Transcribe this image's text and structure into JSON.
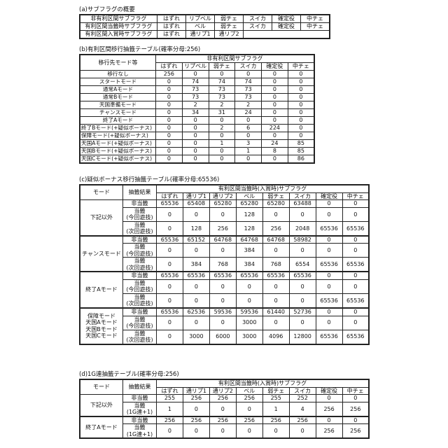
{
  "table_a": {
    "title": "(a)サブフラグの概要",
    "rows": [
      [
        "非有利区間サブフラグ",
        "はずれ",
        "リプベル",
        "弱チェ",
        "スイカ",
        "確定役",
        "中チェ"
      ],
      [
        "有利区間当籤時サブフラグ",
        "はずれ",
        "ベル",
        "弱チェ",
        "スイカ",
        "確定役",
        "中チェ"
      ],
      [
        "有利区間入賞時サブフラグ",
        "はずれ",
        "通リプ1",
        "通リプ2"
      ]
    ]
  },
  "table_b": {
    "title": "(b)有利区間移行抽籤テーブル(確率分母:256)",
    "corner": "移行先モード等",
    "group_header": "非有利区間サブフラグ",
    "columns": [
      "はずれ",
      "リプベル",
      "弱チェ",
      "スイカ",
      "確定役",
      "中チェ"
    ],
    "rows": [
      {
        "label": "移行なし",
        "values": [
          256,
          0,
          0,
          0,
          0,
          0
        ]
      },
      {
        "label": "スタートモード",
        "values": [
          0,
          74,
          74,
          74,
          0,
          0
        ]
      },
      {
        "label": "通常Aモード",
        "values": [
          0,
          73,
          73,
          73,
          0,
          0
        ]
      },
      {
        "label": "通常Bモード",
        "values": [
          0,
          73,
          73,
          73,
          0,
          0
        ]
      },
      {
        "label": "天国準備モード",
        "values": [
          0,
          2,
          2,
          2,
          0,
          0
        ]
      },
      {
        "label": "チャンスモード",
        "values": [
          0,
          34,
          31,
          24,
          0,
          0
        ]
      },
      {
        "label": "終了Aモード",
        "values": [
          0,
          0,
          0,
          0,
          0,
          0
        ]
      },
      {
        "label": "終了Bモード(+疑似ボーナス)",
        "values": [
          0,
          0,
          2,
          6,
          224,
          0
        ]
      },
      {
        "label": "保障モード(+疑似ボーナス)",
        "values": [
          0,
          0,
          0,
          0,
          0,
          0
        ]
      },
      {
        "label": "天国Aモード(+疑似ボーナス)",
        "values": [
          0,
          0,
          1,
          3,
          24,
          85
        ]
      },
      {
        "label": "天国Bモード(+疑似ボーナス)",
        "values": [
          0,
          0,
          0,
          1,
          8,
          85
        ]
      },
      {
        "label": "天国Cモード(+疑似ボーナス)",
        "values": [
          0,
          0,
          0,
          0,
          0,
          86
        ]
      }
    ]
  },
  "table_c": {
    "title": "(c)疑似ボーナス移行抽籤テーブル(確率分母:65536)",
    "mode_header": "モード",
    "result_header": "抽籤結果",
    "group_header": "有利区間当籤時(入賞時)サブフラグ",
    "columns": [
      "はずれ",
      "通リプ1",
      "通リプ2",
      "ベル",
      "弱チェ",
      "スイカ",
      "確定役",
      "中チェ"
    ],
    "groups": [
      {
        "mode": "下記以外",
        "rows": [
          {
            "result": "非当籤",
            "values": [
              65536,
              65408,
              65280,
              65280,
              65280,
              63488,
              0,
              0
            ]
          },
          {
            "result": "当籤\n(今回遊技)",
            "values": [
              0,
              0,
              0,
              128,
              0,
              0,
              0,
              0
            ]
          },
          {
            "result": "当籤\n(次回遊技)",
            "values": [
              0,
              128,
              256,
              128,
              256,
              2048,
              65536,
              65536
            ]
          }
        ]
      },
      {
        "mode": "チャンスモード",
        "rows": [
          {
            "result": "非当籤",
            "values": [
              65536,
              65152,
              64768,
              64768,
              64768,
              58982,
              0,
              0
            ]
          },
          {
            "result": "当籤\n(今回遊技)",
            "values": [
              0,
              0,
              0,
              384,
              0,
              0,
              0,
              0
            ]
          },
          {
            "result": "当籤\n(次回遊技)",
            "values": [
              0,
              384,
              768,
              384,
              768,
              6554,
              65536,
              65536
            ]
          }
        ]
      },
      {
        "mode": "終了Aモード",
        "rows": [
          {
            "result": "非当籤",
            "values": [
              65536,
              65536,
              65536,
              65536,
              65536,
              65536,
              0,
              0
            ]
          },
          {
            "result": "当籤\n(今回遊技)",
            "values": [
              0,
              0,
              0,
              0,
              0,
              0,
              0,
              0
            ]
          },
          {
            "result": "当籤\n(次回遊技)",
            "values": [
              0,
              0,
              0,
              0,
              0,
              0,
              65536,
              65536
            ]
          }
        ]
      },
      {
        "mode": "保障モード\n天国Aモード\n天国Bモード\n天国Cモード",
        "rows": [
          {
            "result": "非当籤",
            "values": [
              65536,
              62536,
              59536,
              59536,
              61440,
              52736,
              0,
              0
            ]
          },
          {
            "result": "当籤\n(今回遊技)",
            "values": [
              0,
              0,
              0,
              3000,
              0,
              0,
              0,
              0
            ]
          },
          {
            "result": "当籤\n(次回遊技)",
            "values": [
              0,
              3000,
              6000,
              3000,
              4096,
              12800,
              65536,
              65536
            ]
          }
        ]
      }
    ]
  },
  "table_d": {
    "title": "(d)1G連抽籤テーブル(確率分母:256)",
    "mode_header": "モード",
    "result_header": "抽籤結果",
    "group_header": "有利区間当籤時(入賞時)サブフラグ",
    "columns": [
      "はずれ",
      "通リプ1",
      "通リプ2",
      "ベル",
      "弱チェ",
      "スイカ",
      "確定役",
      "中チェ"
    ],
    "groups": [
      {
        "mode": "下記以外",
        "rows": [
          {
            "result": "非当籤",
            "values": [
              255,
              256,
              256,
              256,
              255,
              252,
              0,
              0
            ]
          },
          {
            "result": "当籤\n(1G連+1)",
            "values": [
              1,
              0,
              0,
              0,
              1,
              4,
              256,
              256
            ]
          }
        ]
      },
      {
        "mode": "終了Aモード",
        "rows": [
          {
            "result": "非当籤",
            "values": [
              256,
              256,
              256,
              256,
              256,
              256,
              0,
              0
            ]
          },
          {
            "result": "当籤\n(1G連+1)",
            "values": [
              0,
              0,
              0,
              0,
              0,
              0,
              256,
              256
            ]
          }
        ]
      }
    ]
  }
}
